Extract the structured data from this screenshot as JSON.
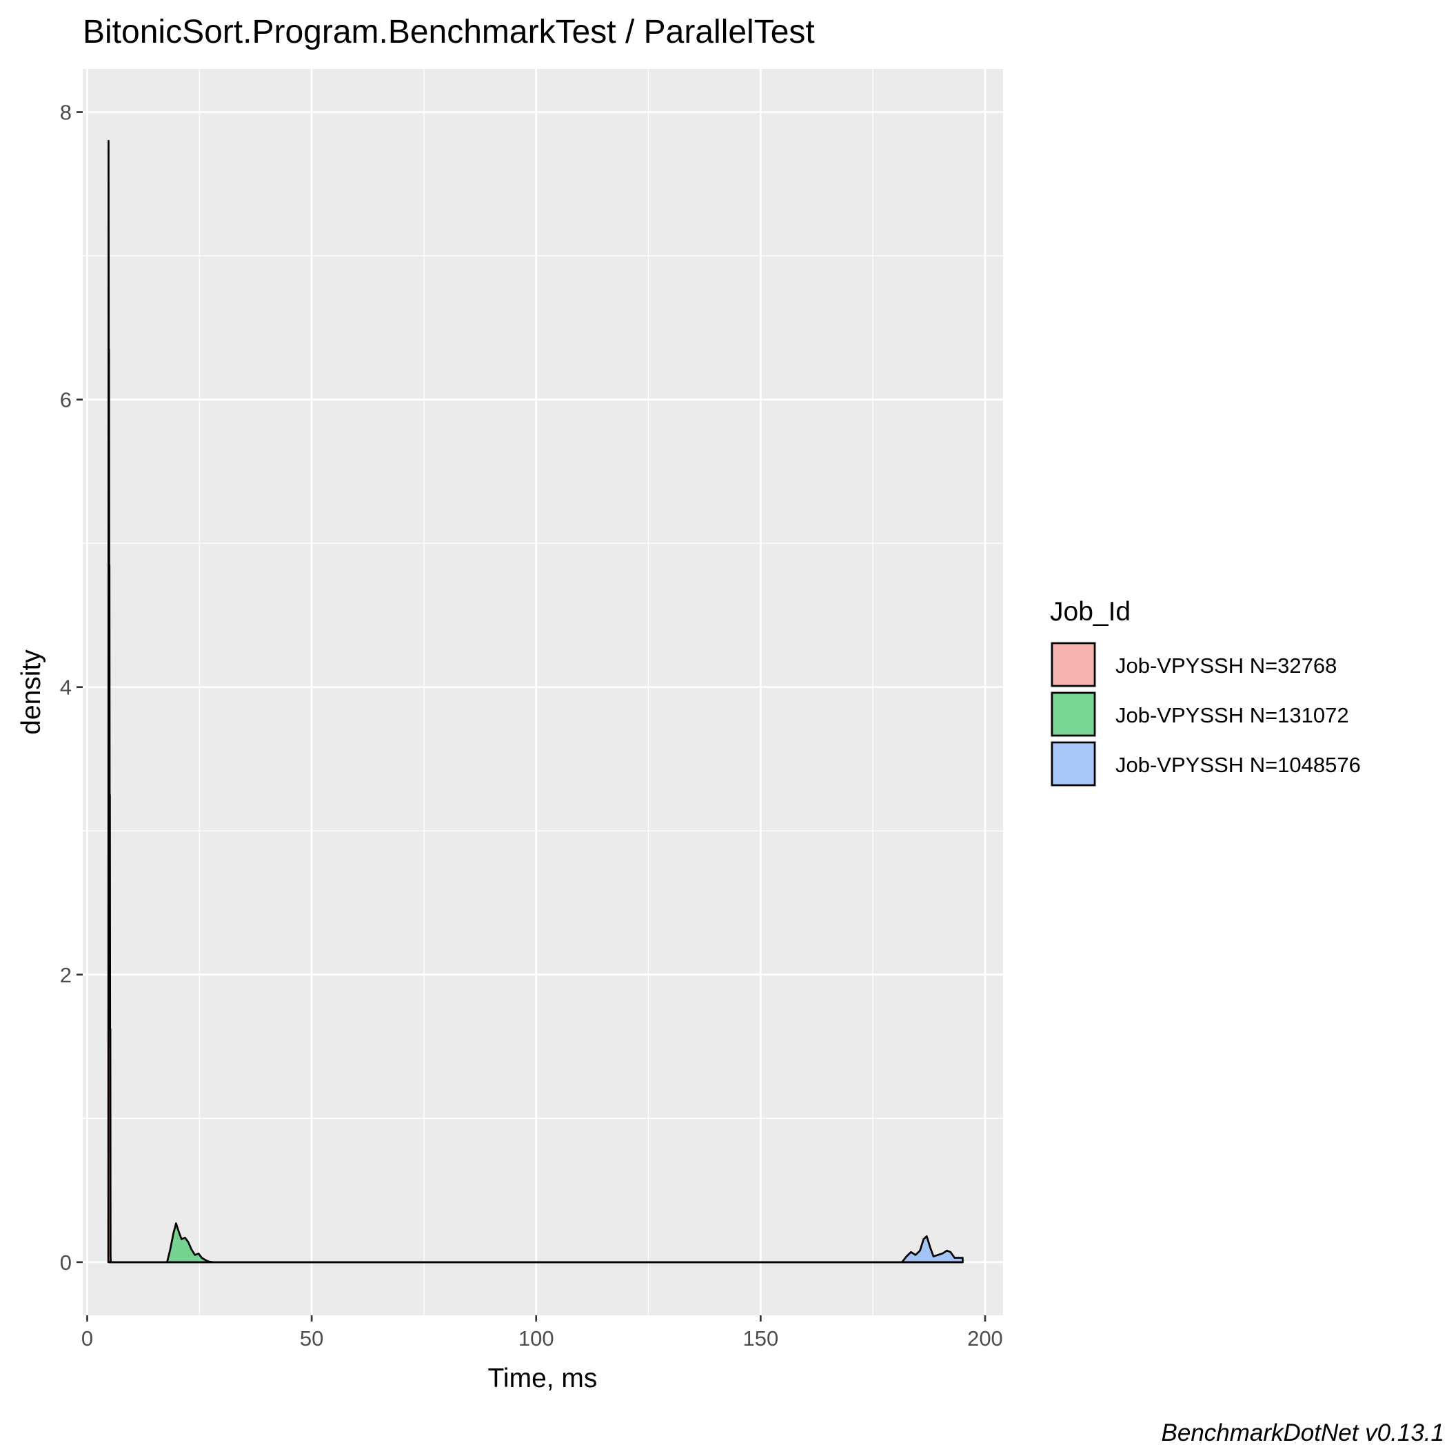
{
  "chart_data": {
    "type": "area",
    "title": "BitonicSort.Program.BenchmarkTest / ParallelTest",
    "xlabel": "Time, ms",
    "ylabel": "density",
    "xlim": [
      -1,
      204
    ],
    "ylim": [
      -0.37,
      8.3
    ],
    "x_ticks": [
      0,
      50,
      100,
      150,
      200
    ],
    "x_tick_labels": [
      "0",
      "50",
      "100",
      "150",
      "200"
    ],
    "y_ticks": [
      0,
      2,
      4,
      6,
      8
    ],
    "y_tick_labels": [
      "0",
      "2",
      "4",
      "6",
      "8"
    ],
    "grid": true,
    "legend": {
      "title": "Job_Id",
      "position": "right",
      "entries": [
        "Job-VPYSSH N=32768",
        "Job-VPYSSH N=131072",
        "Job-VPYSSH N=1048576"
      ]
    },
    "series": [
      {
        "name": "Job-VPYSSH N=32768",
        "color": "#F8766D",
        "x": [
          4.7,
          4.75,
          4.8,
          4.85,
          4.9,
          4.95,
          5.0,
          5.05,
          5.1,
          5.15,
          5.2,
          5.25,
          5.3,
          195.0
        ],
        "y": [
          0,
          7.8,
          6.35,
          6.35,
          4.85,
          4.85,
          3.25,
          3.25,
          1.62,
          1.62,
          0.05,
          0,
          0,
          0
        ]
      },
      {
        "name": "Job-VPYSSH N=131072",
        "color": "#00BA38",
        "x": [
          5.0,
          17.8,
          18.5,
          19.2,
          19.8,
          20.3,
          21.0,
          21.8,
          22.5,
          23.2,
          24.0,
          24.8,
          25.5,
          26.3,
          27.0,
          28.0,
          195.0
        ],
        "y": [
          0,
          0,
          0.09,
          0.2,
          0.27,
          0.22,
          0.16,
          0.17,
          0.14,
          0.09,
          0.05,
          0.06,
          0.03,
          0.015,
          0.005,
          0,
          0
        ]
      },
      {
        "name": "Job-VPYSSH N=1048576",
        "color": "#619CFF",
        "x": [
          5.0,
          181.5,
          182.5,
          183.5,
          184.5,
          185.5,
          186.3,
          187.0,
          187.8,
          188.5,
          189.5,
          190.5,
          191.5,
          192.3,
          193.2,
          194.2,
          195.0
        ],
        "y": [
          0,
          0,
          0.04,
          0.07,
          0.05,
          0.08,
          0.16,
          0.18,
          0.1,
          0.04,
          0.05,
          0.06,
          0.08,
          0.07,
          0.03,
          0.03,
          0.03
        ]
      }
    ],
    "caption": "BenchmarkDotNet v0.13.1"
  }
}
